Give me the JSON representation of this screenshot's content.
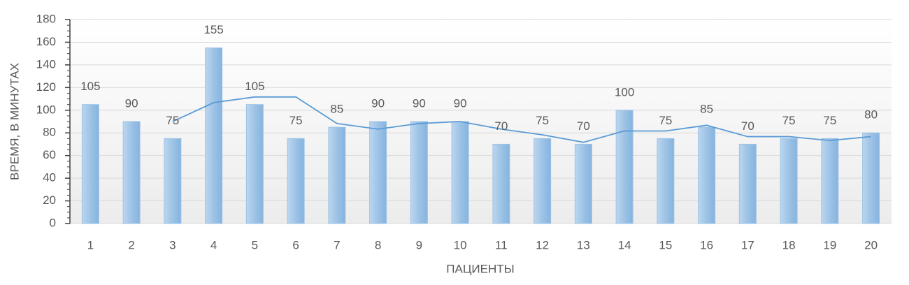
{
  "chart_data": {
    "type": "combo",
    "y_label": "ВРЕМЯ, В МИНУТАХ",
    "x_label": "ПАЦИЕНТЫ",
    "categories": [
      "1",
      "2",
      "3",
      "4",
      "5",
      "6",
      "7",
      "8",
      "9",
      "10",
      "11",
      "12",
      "13",
      "14",
      "15",
      "16",
      "17",
      "18",
      "19",
      "20"
    ],
    "series": [
      {
        "type": "bar",
        "color": "#9dc3e6",
        "data_labels": true,
        "values": [
          105,
          90,
          75,
          155,
          105,
          75,
          85,
          90,
          90,
          90,
          70,
          75,
          70,
          100,
          75,
          85,
          70,
          75,
          75,
          80
        ]
      },
      {
        "type": "line",
        "color": "#5b9bd5",
        "values": [
          null,
          null,
          90,
          106.7,
          111.7,
          111.7,
          88.3,
          83.3,
          88.3,
          90,
          83.3,
          78.3,
          71.7,
          81.7,
          81.7,
          86.7,
          76.7,
          76.7,
          73.3,
          76.7
        ]
      }
    ],
    "ylim": [
      0,
      180
    ],
    "yticks": [
      0,
      20,
      40,
      60,
      80,
      100,
      120,
      140,
      160,
      180
    ],
    "grid": true
  }
}
